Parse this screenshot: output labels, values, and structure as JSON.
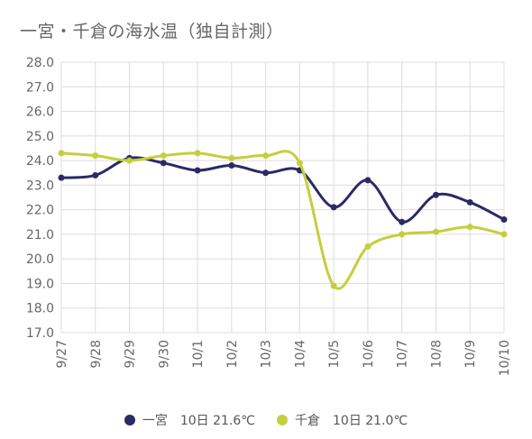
{
  "chart_data": {
    "type": "line",
    "title": "一宮・千倉の海水温（独自計測）",
    "categories": [
      "9/27",
      "9/28",
      "9/29",
      "9/30",
      "10/1",
      "10/2",
      "10/3",
      "10/4",
      "10/5",
      "10/6",
      "10/7",
      "10/8",
      "10/9",
      "10/10"
    ],
    "series": [
      {
        "name": "一宮",
        "color": "#2b2a66",
        "values": [
          23.3,
          23.4,
          24.1,
          23.9,
          23.6,
          23.8,
          23.5,
          23.6,
          22.1,
          23.2,
          21.5,
          22.6,
          22.3,
          21.6
        ]
      },
      {
        "name": "千倉",
        "color": "#c3cf3d",
        "values": [
          24.3,
          24.2,
          24.0,
          24.2,
          24.3,
          24.1,
          24.2,
          23.9,
          18.9,
          20.5,
          21.0,
          21.1,
          21.3,
          21.0
        ]
      }
    ],
    "ylim": [
      17.0,
      28.0
    ],
    "ytick_step": 1.0,
    "y_decimals": 1,
    "grid": true,
    "legend_position": "bottom",
    "smooth": true
  },
  "legend": [
    {
      "name": "一宮",
      "summary": "10日 21.6℃",
      "color": "#2b2a66"
    },
    {
      "name": "千倉",
      "summary": "10日 21.0℃",
      "color": "#c3cf3d"
    }
  ]
}
